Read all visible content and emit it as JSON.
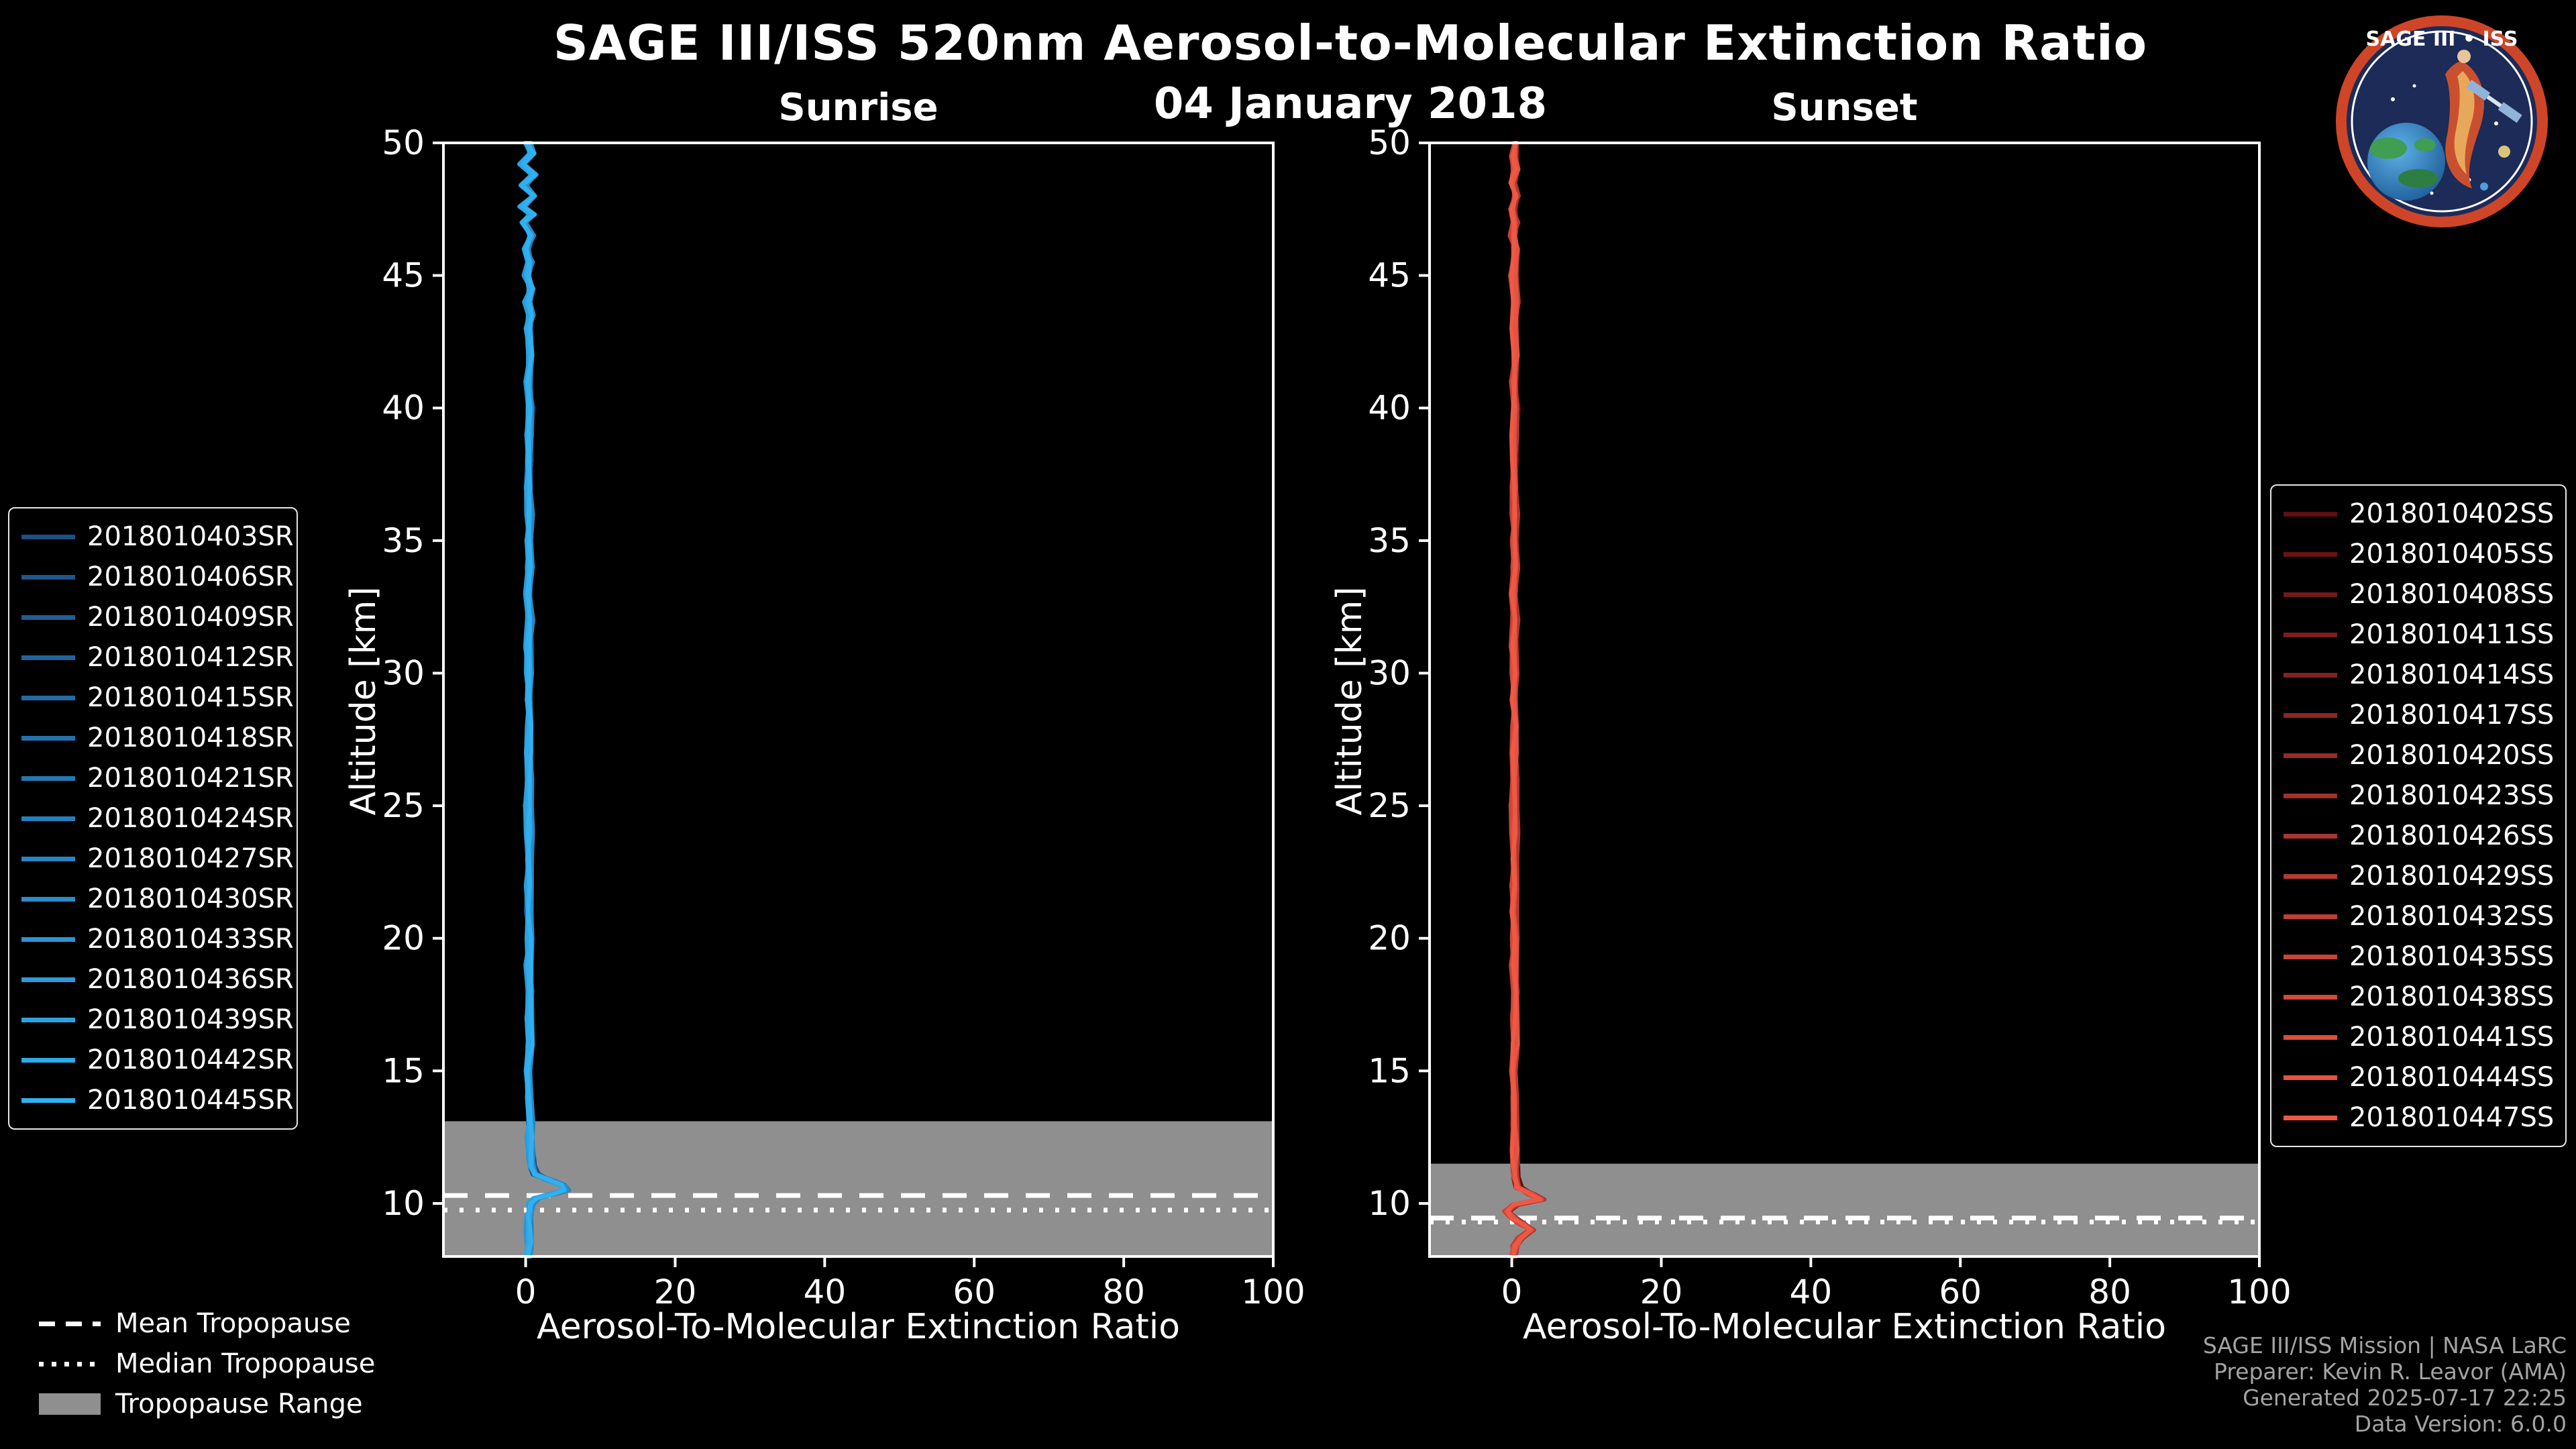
{
  "title": "SAGE III/ISS 520nm Aerosol-to-Molecular Extinction Ratio",
  "date": "04 January 2018",
  "logo": {
    "title": "SAGE III • ISS"
  },
  "colors": {
    "background": "#000000",
    "band": "#8f8f8f",
    "axis": "#ffffff",
    "footer_text": "#a3a3a3",
    "sunrise_start": "#1c4f86",
    "sunrise_end": "#31b0f0",
    "sunset_start": "#5e0f12",
    "sunset_end": "#ef5844"
  },
  "trop_legend": {
    "mean": "Mean Tropopause",
    "median": "Median Tropopause",
    "range": "Tropopause Range"
  },
  "footer": {
    "lines": [
      "SAGE III/ISS Mission | NASA LaRC",
      "Preparer: Kevin R. Leavor (AMA)",
      "Generated 2025-07-17 22:25",
      "Data Version: 6.0.0"
    ]
  },
  "chart_data": [
    {
      "type": "line",
      "title": "Sunrise",
      "xlabel": "Aerosol-To-Molecular Extinction Ratio",
      "ylabel": "Altitude [km]",
      "xlim": [
        -11,
        100
      ],
      "ylim": [
        8,
        50
      ],
      "x_ticks": [
        0,
        20,
        40,
        60,
        80,
        100
      ],
      "y_ticks": [
        10,
        15,
        20,
        25,
        30,
        35,
        40,
        45,
        50
      ],
      "grid": false,
      "legend_position": "outside-left",
      "color_start": "#1c4f86",
      "color_end": "#31b0f0",
      "tropopause": {
        "mean": 10.3,
        "median": 9.75,
        "range_top": 13.1,
        "range_bottom": 8.0
      },
      "series_names": [
        "2018010403SR",
        "2018010406SR",
        "2018010409SR",
        "2018010412SR",
        "2018010415SR",
        "2018010418SR",
        "2018010421SR",
        "2018010424SR",
        "2018010427SR",
        "2018010430SR",
        "2018010433SR",
        "2018010436SR",
        "2018010439SR",
        "2018010442SR",
        "2018010445SR"
      ],
      "profile_points": [
        [
          8,
          0.4
        ],
        [
          8.5,
          0.55
        ],
        [
          9,
          0.35
        ],
        [
          9.5,
          0.5
        ],
        [
          10,
          0.8
        ],
        [
          10.2,
          1.5
        ],
        [
          10.35,
          3.5
        ],
        [
          10.5,
          5.3
        ],
        [
          10.7,
          4.8
        ],
        [
          10.9,
          3.0
        ],
        [
          11.1,
          1.3
        ],
        [
          11.4,
          0.8
        ],
        [
          11.8,
          0.6
        ],
        [
          12.5,
          0.5
        ],
        [
          13,
          0.6
        ],
        [
          14,
          0.5
        ],
        [
          15,
          0.42
        ],
        [
          16,
          0.55
        ],
        [
          17,
          0.4
        ],
        [
          18,
          0.5
        ],
        [
          19,
          0.42
        ],
        [
          20,
          0.52
        ],
        [
          21,
          0.4
        ],
        [
          22,
          0.5
        ],
        [
          23,
          0.42
        ],
        [
          24,
          0.5
        ],
        [
          25,
          0.4
        ],
        [
          26,
          0.52
        ],
        [
          27,
          0.4
        ],
        [
          28,
          0.5
        ],
        [
          29,
          0.42
        ],
        [
          30,
          0.5
        ],
        [
          31,
          0.4
        ],
        [
          32,
          0.52
        ],
        [
          33,
          0.4
        ],
        [
          34,
          0.5
        ],
        [
          35,
          0.42
        ],
        [
          36,
          0.52
        ],
        [
          37,
          0.4
        ],
        [
          38,
          0.5
        ],
        [
          39,
          0.4
        ],
        [
          40,
          0.55
        ],
        [
          41,
          0.35
        ],
        [
          42,
          0.6
        ],
        [
          43,
          0.25
        ],
        [
          43.5,
          0.65
        ],
        [
          44,
          0.2
        ],
        [
          44.5,
          0.7
        ],
        [
          45,
          0.15
        ],
        [
          45.5,
          0.65
        ],
        [
          46,
          0.05
        ],
        [
          46.5,
          0.75
        ],
        [
          47,
          -0.2
        ],
        [
          47.3,
          0.85
        ],
        [
          47.6,
          -0.45
        ],
        [
          48,
          1.0
        ],
        [
          48.4,
          -0.3
        ],
        [
          48.8,
          1.05
        ],
        [
          49.2,
          -0.5
        ],
        [
          49.6,
          0.8
        ],
        [
          50,
          0.3
        ]
      ]
    },
    {
      "type": "line",
      "title": "Sunset",
      "xlabel": "Aerosol-To-Molecular Extinction Ratio",
      "ylabel": "Altitude [km]",
      "xlim": [
        -11,
        100
      ],
      "ylim": [
        8,
        50
      ],
      "x_ticks": [
        0,
        20,
        40,
        60,
        80,
        100
      ],
      "y_ticks": [
        10,
        15,
        20,
        25,
        30,
        35,
        40,
        45,
        50
      ],
      "grid": false,
      "legend_position": "outside-right",
      "color_start": "#5e0f12",
      "color_end": "#ef5844",
      "tropopause": {
        "mean": 9.45,
        "median": 9.3,
        "range_top": 11.5,
        "range_bottom": 8.0
      },
      "series_names": [
        "2018010402SS",
        "2018010405SS",
        "2018010408SS",
        "2018010411SS",
        "2018010414SS",
        "2018010417SS",
        "2018010420SS",
        "2018010423SS",
        "2018010426SS",
        "2018010429SS",
        "2018010432SS",
        "2018010435SS",
        "2018010438SS",
        "2018010441SS",
        "2018010444SS",
        "2018010447SS"
      ],
      "profile_points": [
        [
          8,
          0.3
        ],
        [
          8.4,
          0.5
        ],
        [
          8.7,
          1.1
        ],
        [
          9,
          2.7
        ],
        [
          9.2,
          1.6
        ],
        [
          9.45,
          0.3
        ],
        [
          9.7,
          -0.7
        ],
        [
          9.95,
          0.4
        ],
        [
          10.15,
          3.9
        ],
        [
          10.35,
          2.6
        ],
        [
          10.6,
          0.9
        ],
        [
          11,
          0.45
        ],
        [
          11.5,
          0.35
        ],
        [
          12,
          0.4
        ],
        [
          13,
          0.32
        ],
        [
          14,
          0.42
        ],
        [
          15,
          0.32
        ],
        [
          16,
          0.42
        ],
        [
          17,
          0.32
        ],
        [
          18,
          0.4
        ],
        [
          19,
          0.32
        ],
        [
          20,
          0.4
        ],
        [
          21,
          0.33
        ],
        [
          22,
          0.42
        ],
        [
          23,
          0.32
        ],
        [
          24,
          0.4
        ],
        [
          25,
          0.33
        ],
        [
          26,
          0.42
        ],
        [
          27,
          0.32
        ],
        [
          28,
          0.4
        ],
        [
          29,
          0.32
        ],
        [
          30,
          0.42
        ],
        [
          31,
          0.32
        ],
        [
          32,
          0.4
        ],
        [
          33,
          0.33
        ],
        [
          34,
          0.42
        ],
        [
          35,
          0.32
        ],
        [
          36,
          0.4
        ],
        [
          37,
          0.33
        ],
        [
          38,
          0.42
        ],
        [
          39,
          0.3
        ],
        [
          40,
          0.45
        ],
        [
          41,
          0.28
        ],
        [
          42,
          0.5
        ],
        [
          43,
          0.22
        ],
        [
          44,
          0.5
        ],
        [
          45,
          0.2
        ],
        [
          46,
          0.5
        ],
        [
          46.5,
          0.15
        ],
        [
          47,
          0.55
        ],
        [
          47.5,
          0.1
        ],
        [
          48,
          0.55
        ],
        [
          48.5,
          0.2
        ],
        [
          49,
          0.5
        ],
        [
          49.5,
          0.28
        ],
        [
          50,
          0.4
        ]
      ]
    }
  ]
}
